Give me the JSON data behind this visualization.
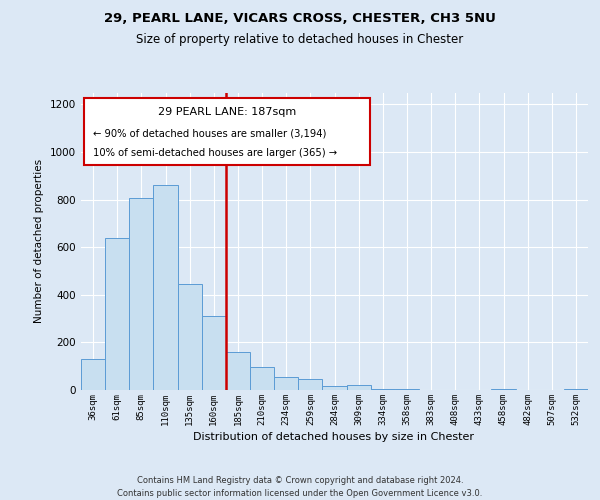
{
  "title1": "29, PEARL LANE, VICARS CROSS, CHESTER, CH3 5NU",
  "title2": "Size of property relative to detached houses in Chester",
  "xlabel": "Distribution of detached houses by size in Chester",
  "ylabel": "Number of detached properties",
  "bar_labels": [
    "36sqm",
    "61sqm",
    "85sqm",
    "110sqm",
    "135sqm",
    "160sqm",
    "185sqm",
    "210sqm",
    "234sqm",
    "259sqm",
    "284sqm",
    "309sqm",
    "334sqm",
    "358sqm",
    "383sqm",
    "408sqm",
    "433sqm",
    "458sqm",
    "482sqm",
    "507sqm",
    "532sqm"
  ],
  "bar_values": [
    130,
    640,
    805,
    860,
    445,
    310,
    160,
    95,
    55,
    45,
    15,
    20,
    5,
    5,
    0,
    0,
    0,
    5,
    0,
    0,
    5
  ],
  "bar_color": "#c8dff0",
  "bar_edge_color": "#5b9bd5",
  "vline_color": "#cc0000",
  "annotation_title": "29 PEARL LANE: 187sqm",
  "annotation_line1": "← 90% of detached houses are smaller (3,194)",
  "annotation_line2": "10% of semi-detached houses are larger (365) →",
  "annotation_box_color": "#ffffff",
  "annotation_box_edge": "#cc0000",
  "ylim": [
    0,
    1250
  ],
  "yticks": [
    0,
    200,
    400,
    600,
    800,
    1000,
    1200
  ],
  "footer1": "Contains HM Land Registry data © Crown copyright and database right 2024.",
  "footer2": "Contains public sector information licensed under the Open Government Licence v3.0.",
  "bg_color": "#dce8f5",
  "plot_bg_color": "#dce8f5"
}
